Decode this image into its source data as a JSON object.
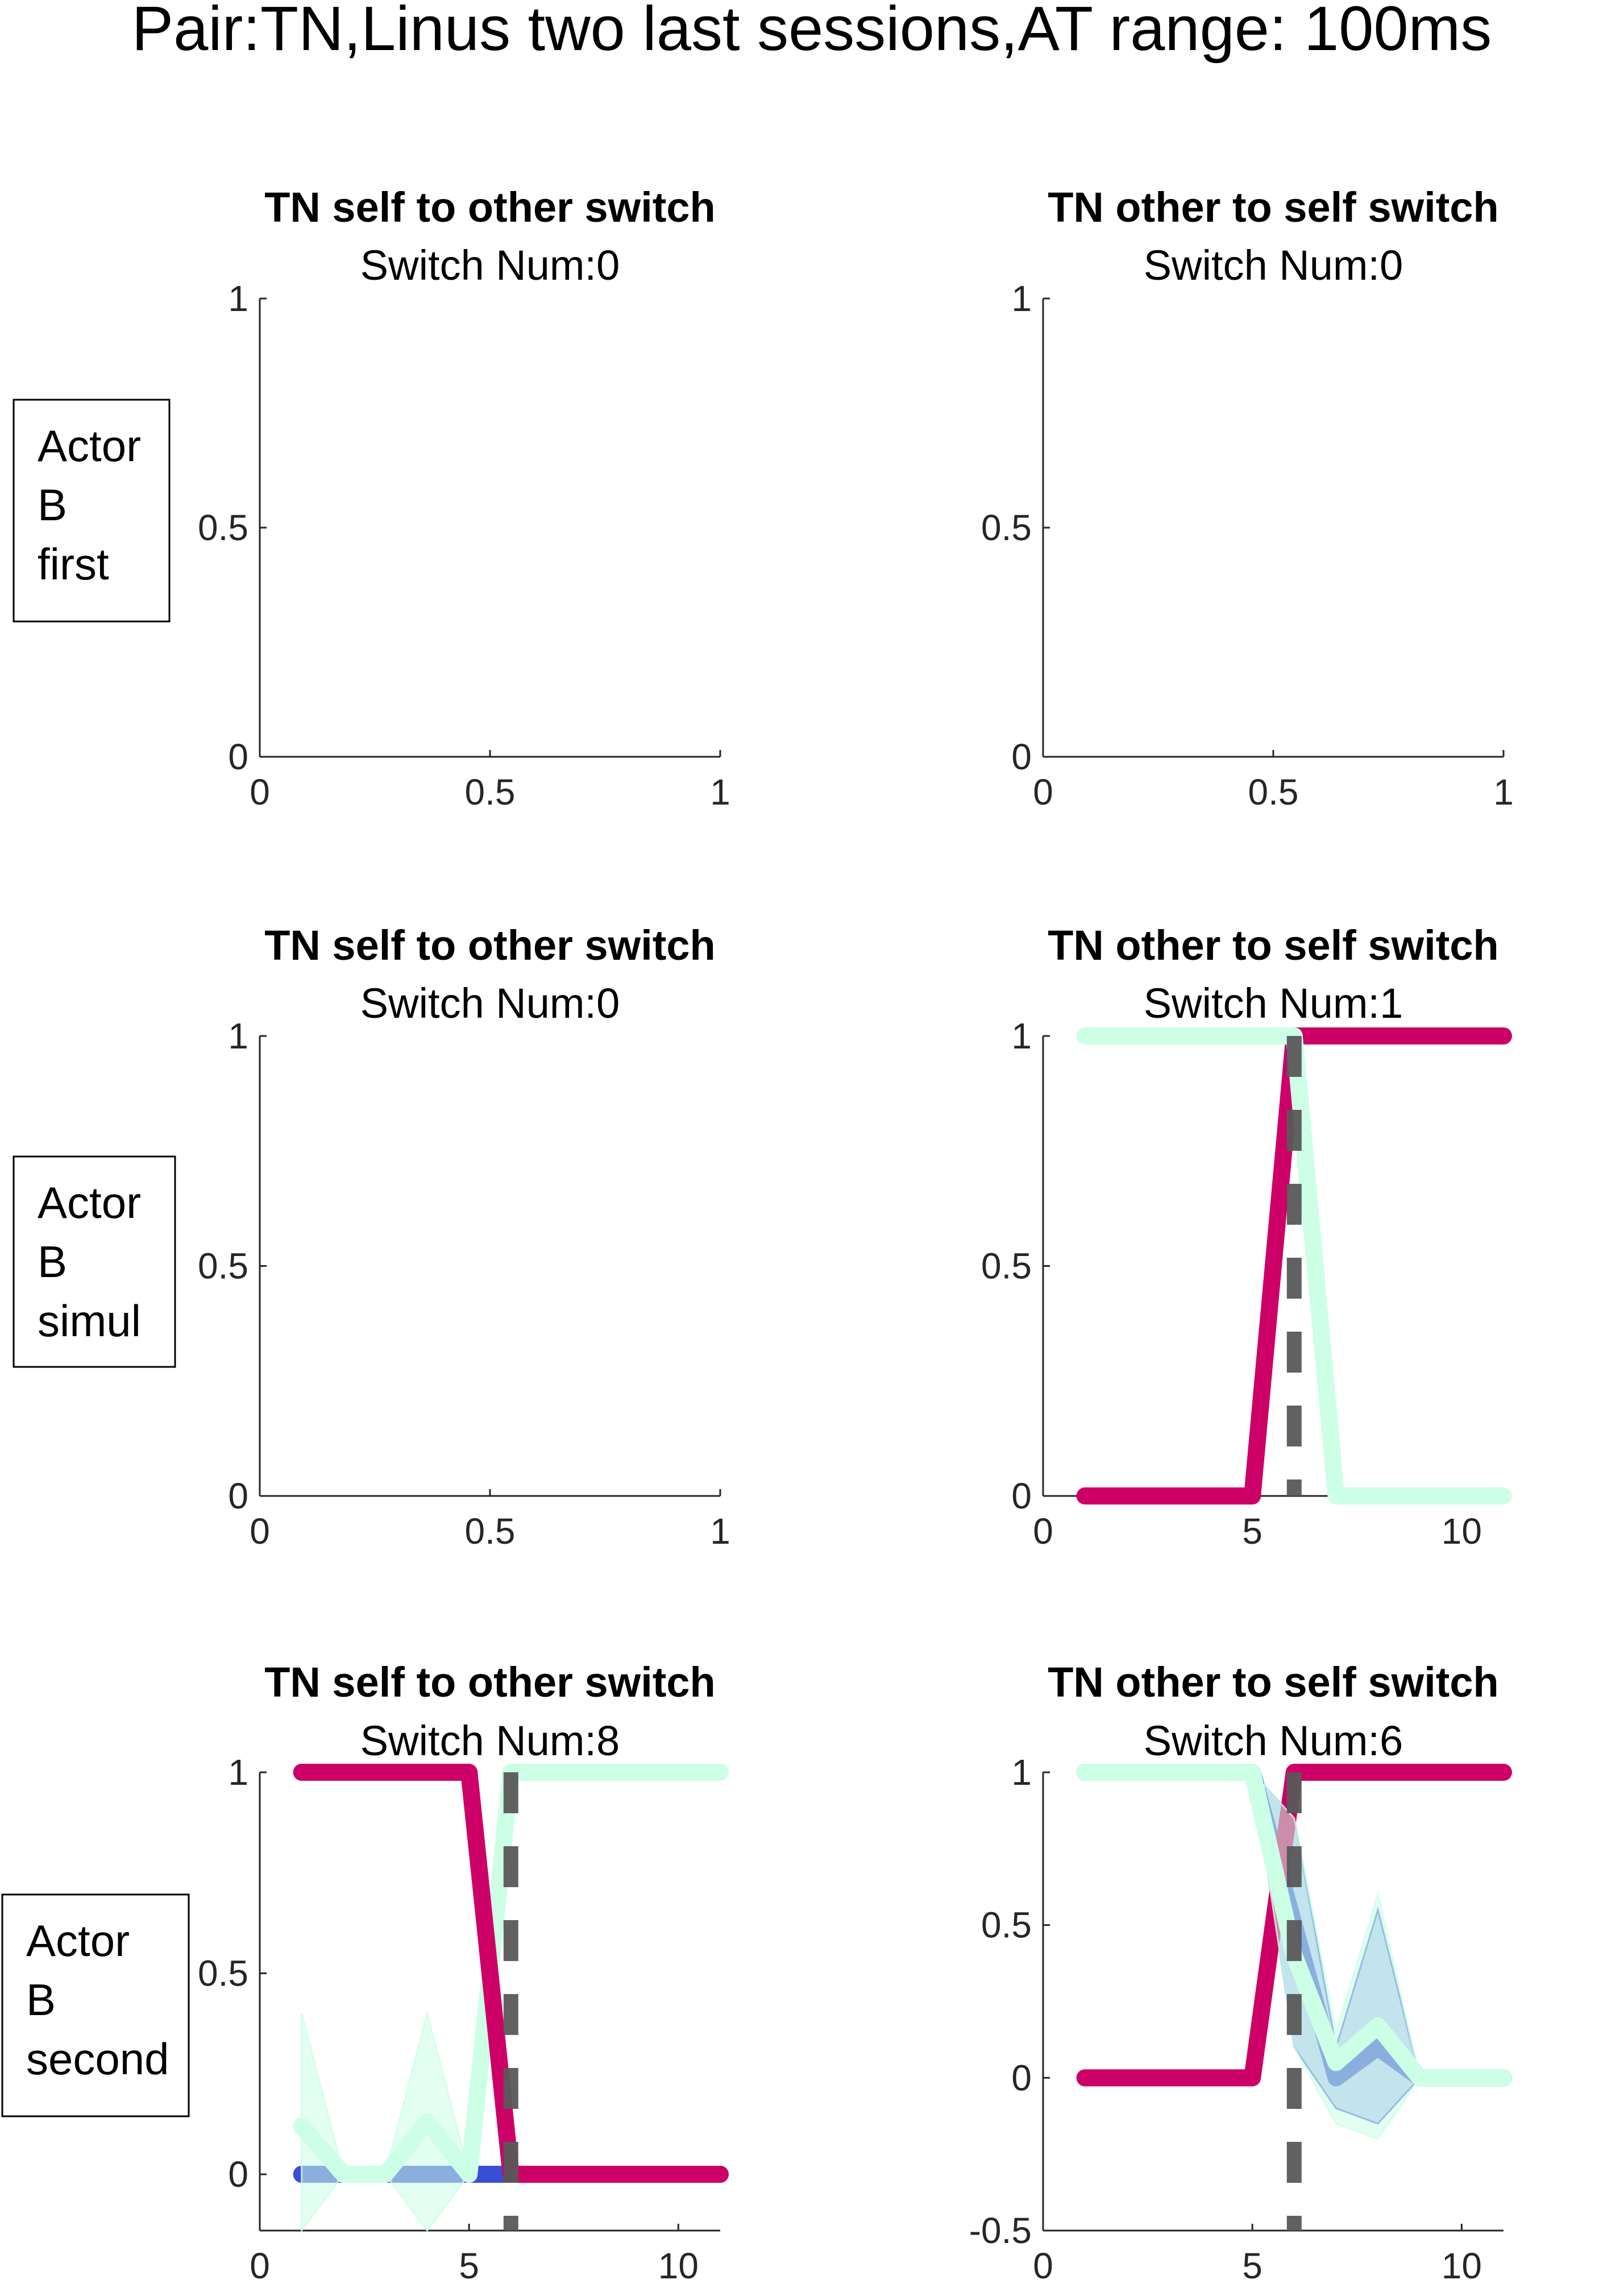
{
  "figure": {
    "title": "Pair:TN,Linus two last sessions,AT range: 100ms"
  },
  "colors": {
    "self_line": "#cc0066",
    "other_line": "#ccffe6",
    "blue_line": "#3b4fd6",
    "blue_band": "#7f8ff0",
    "switch_marker": "#595959",
    "axis": "#262626"
  },
  "row_labels": [
    {
      "lines": [
        "Actor",
        "B",
        "first"
      ]
    },
    {
      "lines": [
        "Actor",
        "B",
        "simul"
      ]
    },
    {
      "lines": [
        "Actor",
        "B",
        "second"
      ]
    }
  ],
  "chart_data": [
    {
      "row": 0,
      "col": 0,
      "type": "line",
      "title": "TN self to other switch",
      "subtitle": "Switch Num:0",
      "xlim": [
        0,
        1
      ],
      "ylim": [
        0,
        1
      ],
      "xticks": [
        0,
        0.5,
        1
      ],
      "xtick_labels": [
        "0",
        "0.5",
        "1"
      ],
      "yticks": [
        0,
        0.5,
        1
      ],
      "ytick_labels": [
        "0",
        "0.5",
        "1"
      ],
      "series": []
    },
    {
      "row": 0,
      "col": 1,
      "type": "line",
      "title": "TN other to self switch",
      "subtitle": "Switch Num:0",
      "xlim": [
        0,
        1
      ],
      "ylim": [
        0,
        1
      ],
      "xticks": [
        0,
        0.5,
        1
      ],
      "xtick_labels": [
        "0",
        "0.5",
        "1"
      ],
      "yticks": [
        0,
        0.5,
        1
      ],
      "ytick_labels": [
        "0",
        "0.5",
        "1"
      ],
      "series": []
    },
    {
      "row": 1,
      "col": 0,
      "type": "line",
      "title": "TN self to other switch",
      "subtitle": "Switch Num:0",
      "xlim": [
        0,
        1
      ],
      "ylim": [
        0,
        1
      ],
      "xticks": [
        0,
        0.5,
        1
      ],
      "xtick_labels": [
        "0",
        "0.5",
        "1"
      ],
      "yticks": [
        0,
        0.5,
        1
      ],
      "ytick_labels": [
        "0",
        "0.5",
        "1"
      ],
      "series": []
    },
    {
      "row": 1,
      "col": 1,
      "type": "line",
      "title": "TN other to self switch",
      "subtitle": "Switch Num:1",
      "xlim": [
        0,
        11
      ],
      "ylim": [
        0,
        1
      ],
      "xticks": [
        0,
        5,
        10
      ],
      "xtick_labels": [
        "0",
        "5",
        "10"
      ],
      "yticks": [
        0,
        0.5,
        1
      ],
      "ytick_labels": [
        "0",
        "0.5",
        "1"
      ],
      "switch_x": 6,
      "series": [
        {
          "color_key": "self_line",
          "x": [
            1,
            2,
            3,
            4,
            5,
            6,
            7,
            8,
            9,
            10,
            11
          ],
          "y": [
            0,
            0,
            0,
            0,
            0,
            1,
            1,
            1,
            1,
            1,
            1
          ]
        },
        {
          "color_key": "other_line",
          "x": [
            1,
            2,
            3,
            4,
            5,
            6,
            7,
            8,
            9,
            10,
            11
          ],
          "y": [
            1,
            1,
            1,
            1,
            1,
            1,
            0,
            0,
            0,
            0,
            0
          ]
        }
      ]
    },
    {
      "row": 2,
      "col": 0,
      "type": "line",
      "title": "TN self to other switch",
      "subtitle": "Switch Num:8",
      "xlim": [
        0,
        11
      ],
      "ylim": [
        -0.14,
        1
      ],
      "xticks": [
        0,
        5,
        10
      ],
      "xtick_labels": [
        "0",
        "5",
        "10"
      ],
      "yticks": [
        0,
        0.5,
        1
      ],
      "ytick_labels": [
        "0",
        "0.5",
        "1"
      ],
      "switch_x": 6,
      "series": [
        {
          "color_key": "blue_line",
          "band_key": "blue_band",
          "x": [
            1,
            2,
            3,
            4,
            5,
            6,
            7,
            8,
            9,
            10,
            11
          ],
          "y": [
            0,
            0,
            0,
            0,
            0,
            0,
            0,
            0,
            0,
            0,
            0
          ],
          "band_low": [
            0,
            0,
            0,
            0,
            0,
            0,
            0,
            0,
            0,
            0,
            0
          ],
          "band_high": [
            0,
            0,
            0,
            0,
            0,
            0,
            0,
            0,
            0,
            0,
            0
          ]
        },
        {
          "color_key": "other_line",
          "band_key": "other_line",
          "x": [
            1,
            2,
            3,
            4,
            5,
            6,
            7,
            8,
            9,
            10,
            11
          ],
          "y": [
            0.12,
            0,
            0,
            0.13,
            0,
            1,
            1,
            1,
            1,
            1,
            1
          ],
          "band_low": [
            -0.14,
            0,
            0,
            -0.14,
            0,
            1,
            1,
            1,
            1,
            1,
            1
          ],
          "band_high": [
            0.4,
            0,
            0,
            0.4,
            0,
            1,
            1,
            1,
            1,
            1,
            1
          ]
        },
        {
          "color_key": "self_line",
          "x": [
            1,
            2,
            3,
            4,
            5,
            6,
            7,
            8,
            9,
            10,
            11
          ],
          "y": [
            1,
            1,
            1,
            1,
            1,
            0,
            0,
            0,
            0,
            0,
            0
          ]
        }
      ]
    },
    {
      "row": 2,
      "col": 1,
      "type": "line",
      "title": "TN other to self switch",
      "subtitle": "Switch Num:6",
      "xlim": [
        0,
        11
      ],
      "ylim": [
        -0.5,
        1
      ],
      "xticks": [
        0,
        5,
        10
      ],
      "xtick_labels": [
        "0",
        "5",
        "10"
      ],
      "yticks": [
        -0.5,
        0,
        0.5,
        1
      ],
      "ytick_labels": [
        "-0.5",
        "0",
        "0.5",
        "1"
      ],
      "switch_x": 6,
      "series": [
        {
          "color_key": "blue_line",
          "band_key": "blue_band",
          "x": [
            1,
            2,
            3,
            4,
            5,
            6,
            7,
            8,
            9,
            10,
            11
          ],
          "y": [
            1,
            1,
            1,
            1,
            1,
            0.5,
            0,
            0.1,
            0,
            0,
            0
          ],
          "band_low": [
            1,
            1,
            1,
            1,
            1,
            0.1,
            -0.1,
            -0.15,
            0,
            0,
            0
          ],
          "band_high": [
            1,
            1,
            1,
            1,
            1,
            0.85,
            0.1,
            0.55,
            0,
            0,
            0
          ]
        },
        {
          "color_key": "self_line",
          "x": [
            1,
            2,
            3,
            4,
            5,
            6,
            7,
            8,
            9,
            10,
            11
          ],
          "y": [
            0,
            0,
            0,
            0,
            0,
            1,
            1,
            1,
            1,
            1,
            1
          ]
        },
        {
          "color_key": "other_line",
          "band_key": "other_line",
          "x": [
            1,
            2,
            3,
            4,
            5,
            6,
            7,
            8,
            9,
            10,
            11
          ],
          "y": [
            1,
            1,
            1,
            1,
            1,
            0.4,
            0.05,
            0.17,
            0,
            0,
            0
          ],
          "band_low": [
            1,
            1,
            1,
            1,
            1,
            0.1,
            -0.15,
            -0.2,
            0,
            0,
            0
          ],
          "band_high": [
            1,
            1,
            1,
            1,
            1,
            0.85,
            0.15,
            0.6,
            0,
            0,
            0
          ]
        }
      ]
    }
  ]
}
